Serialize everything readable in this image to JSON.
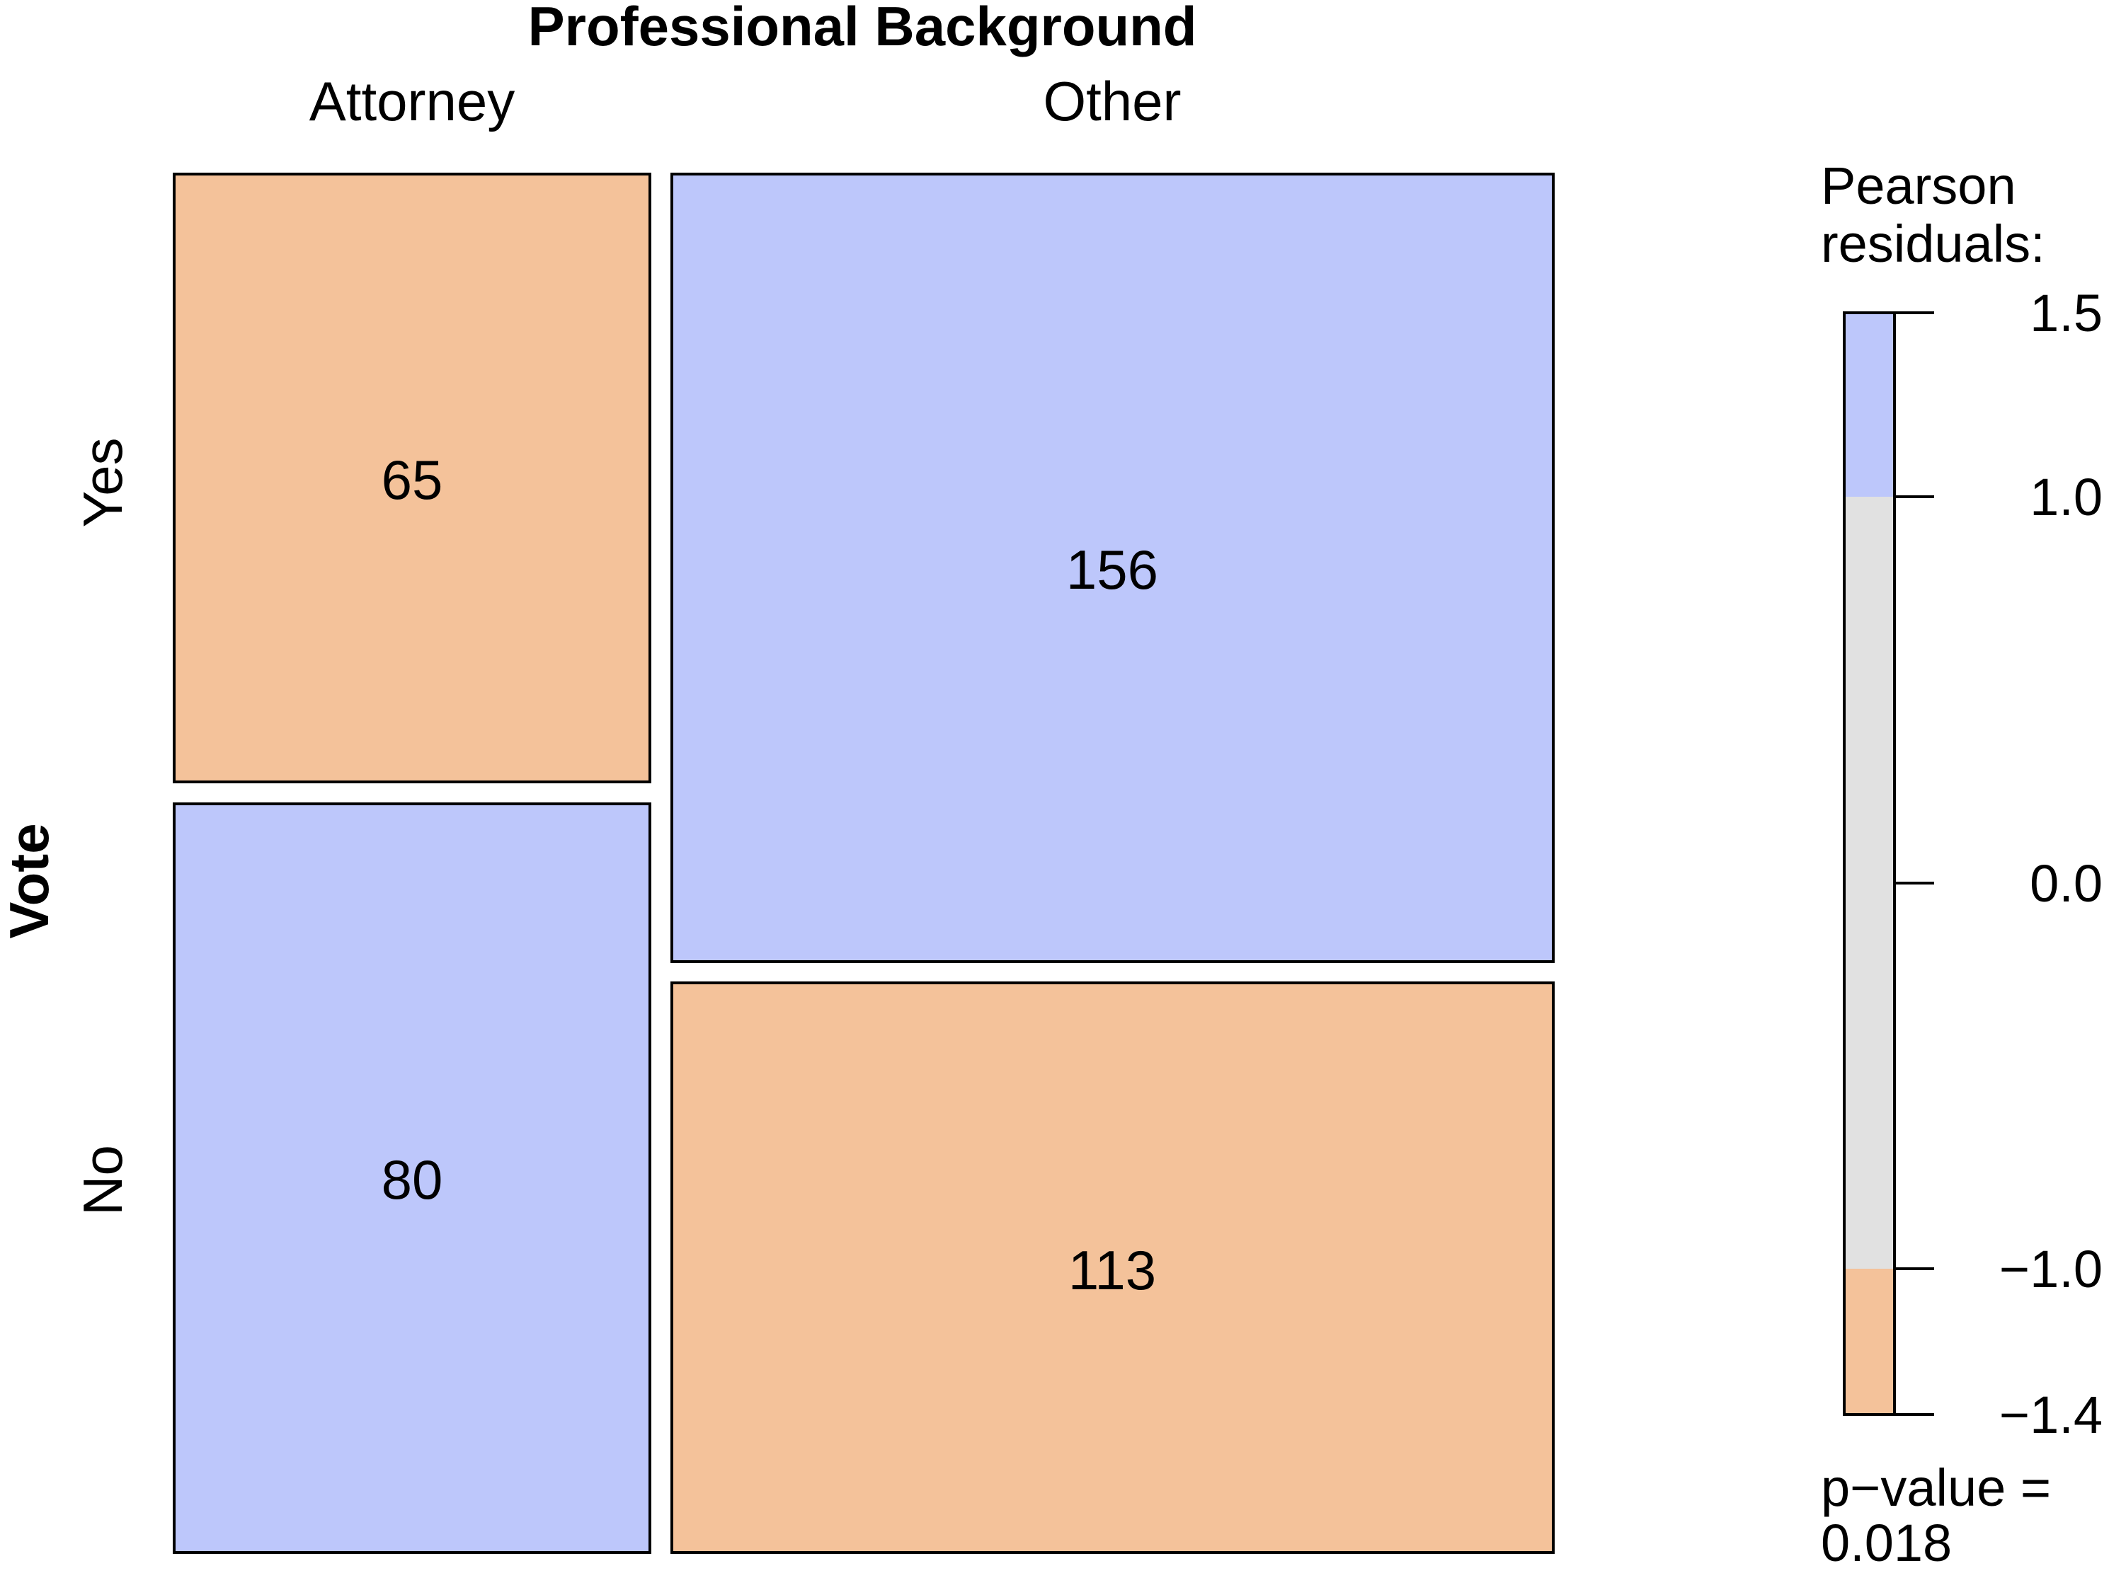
{
  "chart_data": {
    "type": "mosaic",
    "title": "",
    "column_variable": "Professional Background",
    "row_variable": "Vote",
    "columns": [
      "Attorney",
      "Other"
    ],
    "rows": [
      "Yes",
      "No"
    ],
    "counts": [
      [
        65,
        156
      ],
      [
        80,
        113
      ]
    ],
    "legend": {
      "title_line1": "Pearson",
      "title_line2": "residuals:",
      "ticks": [
        "1.5",
        "1.0",
        "0.0",
        "−1.0",
        "−1.4"
      ],
      "range": [
        -1.4,
        1.5
      ],
      "bands": [
        {
          "from": 1.0,
          "to": 1.5,
          "color": "#bdc7fb"
        },
        {
          "from": -1.0,
          "to": 1.0,
          "color": "#e1e1e1"
        },
        {
          "from": -1.4,
          "to": -1.0,
          "color": "#f4c29a"
        }
      ],
      "pvalue_line1": "p−value =",
      "pvalue_line2": "0.018"
    },
    "cell_colors": [
      [
        "#f4c29a",
        "#bdc7fb"
      ],
      [
        "#bdc7fb",
        "#f4c29a"
      ]
    ]
  }
}
